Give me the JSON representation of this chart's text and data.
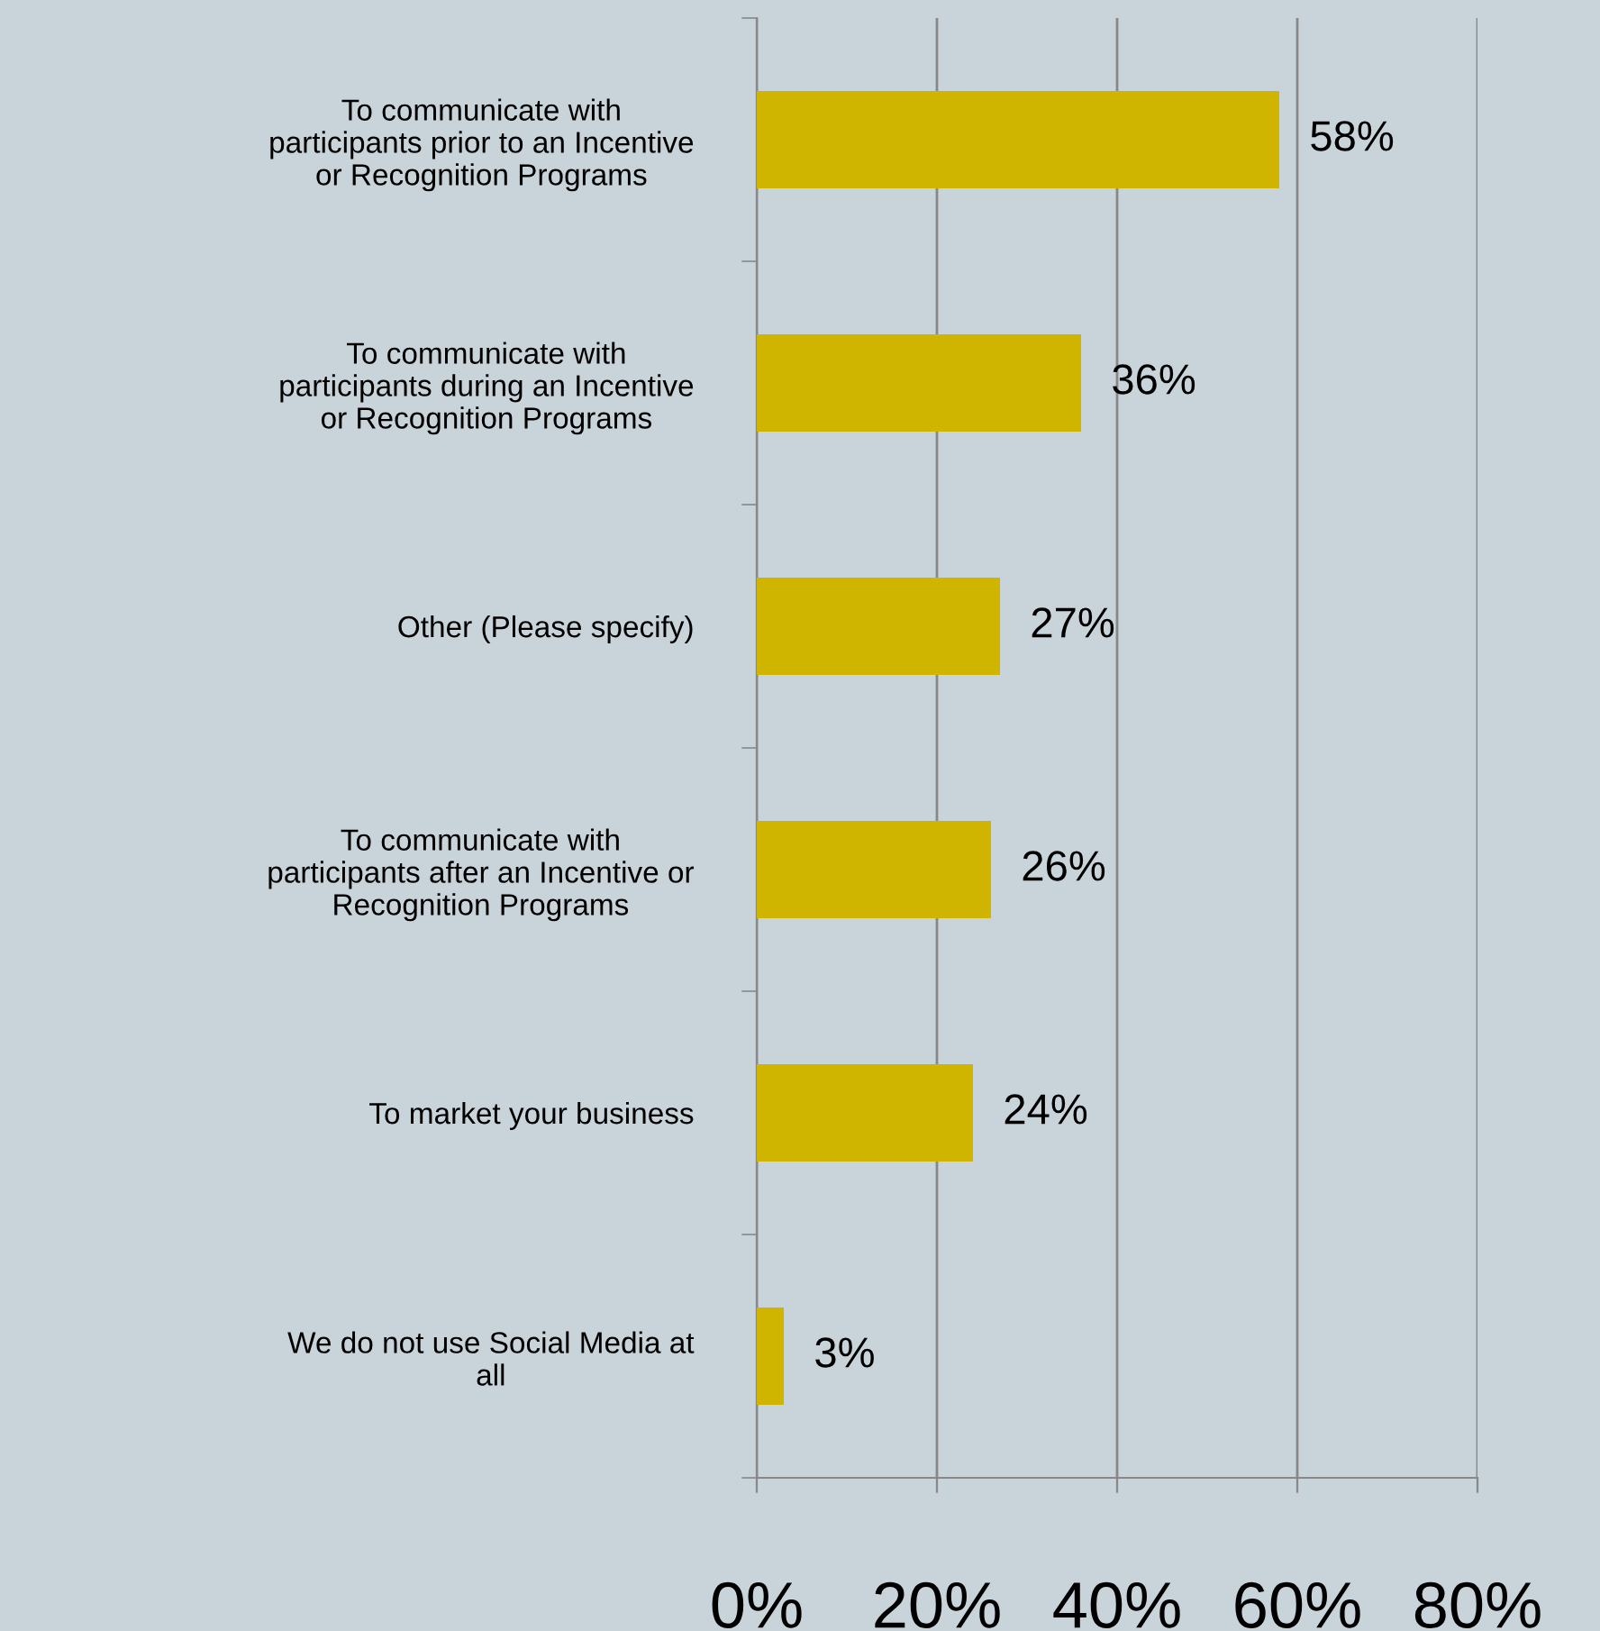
{
  "chart_data": {
    "type": "bar",
    "orientation": "horizontal",
    "categories": [
      "To communicate with\nparticipants prior to an Incentive\nor Recognition Programs",
      "To communicate with\nparticipants during an Incentive\nor Recognition Programs",
      "Other (Please specify)",
      "To communicate with\nparticipants after an Incentive or\nRecognition Programs",
      "To market your business",
      "We do not use Social Media at\nall"
    ],
    "values": [
      58,
      36,
      27,
      26,
      24,
      3
    ],
    "value_labels": [
      "58%",
      "36%",
      "27%",
      "26%",
      "24%",
      "3%"
    ],
    "color": "#cfb400",
    "xlim": [
      0,
      80
    ],
    "xticks": [
      {
        "value": 0,
        "label": "0%"
      },
      {
        "value": 20,
        "label": "20%"
      },
      {
        "value": 40,
        "label": "40%"
      },
      {
        "value": 60,
        "label": "60%"
      },
      {
        "value": 80,
        "label": "80%"
      }
    ],
    "grid": "x",
    "legend": false
  }
}
